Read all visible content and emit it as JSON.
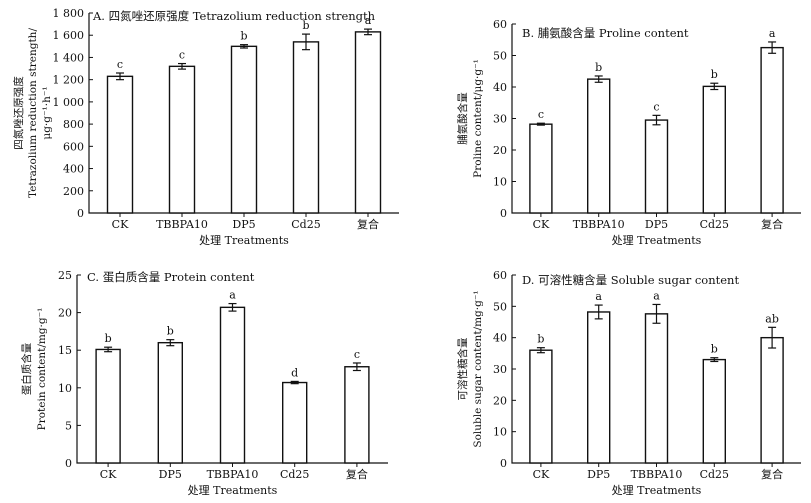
{
  "chart_data": [
    {
      "type": "bar",
      "title": "A. 四氮唑还原强度 Tetrazolium reduction strength",
      "xlabel": "处理 Treatments",
      "ylabel": [
        "四氮唑还原强度",
        "Tetrazolium reduction strength/",
        "μg·g⁻¹·h⁻¹"
      ],
      "categories": [
        "CK",
        "TBBPA10",
        "DP5",
        "Cd25",
        "复合"
      ],
      "values": [
        1230,
        1320,
        1500,
        1540,
        1630
      ],
      "errors": [
        30,
        25,
        15,
        70,
        25
      ],
      "significance": [
        "c",
        "c",
        "b",
        "b",
        "a"
      ],
      "ylim": [
        0,
        1800
      ],
      "yticks": [
        0,
        200,
        400,
        600,
        800,
        1000,
        1200,
        1400,
        1600,
        1800
      ],
      "ytick_labels": [
        "0",
        "200",
        "400",
        "600",
        "800",
        "1 000",
        "1 200",
        "1 400",
        "1 600",
        "1 800"
      ]
    },
    {
      "type": "bar",
      "title": "B. 脯氨酸含量 Proline content",
      "xlabel": "处理 Treatments",
      "ylabel": [
        "脯氨酸含量",
        "Proline content/μg·g⁻¹"
      ],
      "categories": [
        "CK",
        "TBBPA10",
        "DP5",
        "Cd25",
        "复合"
      ],
      "values": [
        28.2,
        42.5,
        29.5,
        40.2,
        52.5
      ],
      "errors": [
        0.3,
        1.0,
        1.5,
        1.0,
        1.8
      ],
      "significance": [
        "c",
        "b",
        "c",
        "b",
        "a"
      ],
      "ylim": [
        0,
        60
      ],
      "yticks": [
        0,
        10,
        20,
        30,
        40,
        50,
        60
      ],
      "ytick_labels": [
        "0",
        "10",
        "20",
        "30",
        "40",
        "50",
        "60"
      ]
    },
    {
      "type": "bar",
      "title": "C. 蛋白质含量 Protein content",
      "xlabel": "处理 Treatments",
      "ylabel": [
        "蛋白质含量",
        "Protein content/mg·g⁻¹"
      ],
      "categories": [
        "CK",
        "DP5",
        "TBBPA10",
        "Cd25",
        "复合"
      ],
      "values": [
        15.1,
        16.0,
        20.7,
        10.7,
        12.8
      ],
      "errors": [
        0.3,
        0.4,
        0.5,
        0.15,
        0.5
      ],
      "significance": [
        "b",
        "b",
        "a",
        "d",
        "c"
      ],
      "ylim": [
        0,
        25
      ],
      "yticks": [
        0,
        5,
        10,
        15,
        20,
        25
      ],
      "ytick_labels": [
        "0",
        "5",
        "10",
        "15",
        "20",
        "25"
      ]
    },
    {
      "type": "bar",
      "title": "D. 可溶性糖含量 Soluble sugar content",
      "xlabel": "处理 Treatments",
      "ylabel": [
        "可溶性糖含量",
        "Soluble sugar content/mg·g⁻¹"
      ],
      "categories": [
        "CK",
        "DP5",
        "TBBPA10",
        "Cd25",
        "复合"
      ],
      "values": [
        36.0,
        48.2,
        47.6,
        33.0,
        40.0
      ],
      "errors": [
        0.8,
        2.2,
        3.0,
        0.6,
        3.3
      ],
      "significance": [
        "b",
        "a",
        "a",
        "b",
        "ab"
      ],
      "ylim": [
        0,
        60
      ],
      "yticks": [
        0,
        10,
        20,
        30,
        40,
        50,
        60
      ],
      "ytick_labels": [
        "0",
        "10",
        "20",
        "30",
        "40",
        "50",
        "60"
      ]
    }
  ]
}
